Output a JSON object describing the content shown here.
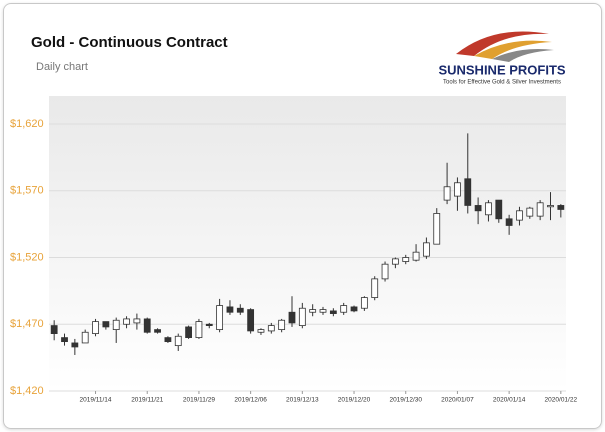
{
  "chart_data": {
    "type": "candlestick",
    "title": "Gold - Continuous Contract",
    "subtitle": "Daily chart",
    "logo": {
      "name": "SUNSHINE PROFITS",
      "tagline": "Tools for Effective Gold & Silver Investments"
    },
    "categories": [
      null,
      null,
      null,
      null,
      "2019/11/14",
      null,
      null,
      null,
      null,
      "2019/11/21",
      null,
      null,
      null,
      null,
      "2019/11/29",
      null,
      null,
      null,
      null,
      "2019/12/06",
      null,
      null,
      null,
      null,
      "2019/12/13",
      null,
      null,
      null,
      null,
      "2019/12/20",
      null,
      null,
      null,
      null,
      "2019/12/30",
      null,
      null,
      null,
      null,
      "2020/01/07",
      null,
      null,
      null,
      null,
      "2020/01/14",
      null,
      null,
      null,
      null,
      "2020/01/22"
    ],
    "open": [
      1469,
      1460,
      1456,
      1456,
      1463,
      1472,
      1466,
      1470,
      1471,
      1474,
      1466,
      1460,
      1454,
      1468,
      1460,
      1470,
      1466,
      1483,
      1482,
      1481,
      1464,
      1465,
      1466,
      1479,
      1469,
      1479,
      1479,
      1480,
      1479,
      1483,
      1482,
      1490,
      1504,
      1515,
      1517,
      1518,
      1521,
      1530,
      1563,
      1566,
      1579,
      1559,
      1552,
      1563,
      1549,
      1548,
      1551,
      1551,
      1558,
      1559
    ],
    "high": [
      1473,
      1463,
      1459,
      1466,
      1474,
      1472,
      1475,
      1476,
      1478,
      1475,
      1467,
      1461,
      1463,
      1469,
      1474,
      1471,
      1489,
      1488,
      1485,
      1482,
      1467,
      1471,
      1474,
      1491,
      1486,
      1485,
      1483,
      1482,
      1486,
      1484,
      1491,
      1506,
      1517,
      1520,
      1522,
      1530,
      1535,
      1557,
      1591,
      1580,
      1613,
      1565,
      1563,
      1563,
      1552,
      1558,
      1558,
      1563,
      1569,
      1560
    ],
    "low": [
      1458,
      1454,
      1447,
      1456,
      1461,
      1466,
      1456,
      1467,
      1466,
      1463,
      1463,
      1456,
      1450,
      1459,
      1459,
      1467,
      1464,
      1477,
      1477,
      1463,
      1462,
      1463,
      1464,
      1468,
      1467,
      1476,
      1477,
      1476,
      1477,
      1479,
      1480,
      1488,
      1502,
      1512,
      1515,
      1517,
      1519,
      1530,
      1560,
      1555,
      1553,
      1545,
      1547,
      1546,
      1537,
      1544,
      1549,
      1548,
      1548,
      1550
    ],
    "close": [
      1463,
      1457,
      1453,
      1464,
      1472,
      1468,
      1473,
      1474,
      1474,
      1464,
      1464,
      1457,
      1461,
      1460,
      1472,
      1469,
      1484,
      1479,
      1479,
      1465,
      1466,
      1469,
      1473,
      1471,
      1482,
      1481,
      1481,
      1478,
      1484,
      1480,
      1490,
      1504,
      1515,
      1519,
      1520,
      1524,
      1531,
      1553,
      1573,
      1576,
      1559,
      1555,
      1561,
      1549,
      1544,
      1555,
      1557,
      1561,
      1559,
      1556
    ],
    "up_color": "#ffffff",
    "down_color": "#333333",
    "ylim": [
      1420,
      1641
    ],
    "yticks": [
      {
        "value": 1420,
        "label": "$1,420"
      },
      {
        "value": 1470,
        "label": "$1,470"
      },
      {
        "value": 1520,
        "label": "$1,520"
      },
      {
        "value": 1570,
        "label": "$1,570"
      },
      {
        "value": 1620,
        "label": "$1,620"
      }
    ],
    "grid": true
  }
}
